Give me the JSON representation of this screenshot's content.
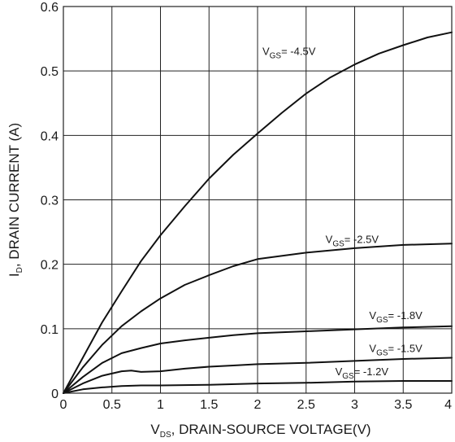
{
  "chart_data": {
    "type": "line",
    "xlabel": {
      "main": "V",
      "sub": "DS",
      "rest": ", DRAIN-SOURCE VOLTAGE(V)"
    },
    "ylabel": {
      "main": "I",
      "sub": "D",
      "rest": ", DRAIN CURRENT (A)"
    },
    "xlim": [
      0,
      4
    ],
    "ylim": [
      0,
      0.6
    ],
    "xticks": [
      {
        "value": 0,
        "label": "0"
      },
      {
        "value": 0.5,
        "label": "0.5"
      },
      {
        "value": 1,
        "label": "1"
      },
      {
        "value": 1.5,
        "label": "1.5"
      },
      {
        "value": 2,
        "label": "2"
      },
      {
        "value": 2.5,
        "label": "2.5"
      },
      {
        "value": 3,
        "label": "3"
      },
      {
        "value": 3.5,
        "label": "3.5"
      },
      {
        "value": 4,
        "label": "4"
      }
    ],
    "yticks": [
      {
        "value": 0,
        "label": "0"
      },
      {
        "value": 0.1,
        "label": "0.1"
      },
      {
        "value": 0.2,
        "label": "0.2"
      },
      {
        "value": 0.3,
        "label": "0.3"
      },
      {
        "value": 0.4,
        "label": "0.4"
      },
      {
        "value": 0.5,
        "label": "0.5"
      },
      {
        "value": 0.6,
        "label": "0.6"
      }
    ],
    "grid": true,
    "series": [
      {
        "name": "VGS= -4.5V",
        "label_main": "V",
        "label_sub": "GS",
        "label_rest": "= -4.5V",
        "label_at": [
          2.05,
          0.525
        ],
        "x": [
          0,
          0.2,
          0.4,
          0.6,
          0.8,
          1.0,
          1.25,
          1.5,
          1.75,
          2.0,
          2.25,
          2.5,
          2.75,
          3.0,
          3.25,
          3.5,
          3.75,
          4.0
        ],
        "y": [
          0,
          0.055,
          0.11,
          0.158,
          0.205,
          0.245,
          0.29,
          0.333,
          0.37,
          0.403,
          0.435,
          0.465,
          0.49,
          0.51,
          0.527,
          0.54,
          0.552,
          0.56
        ]
      },
      {
        "name": "VGS= -2.5V",
        "label_main": "V",
        "label_sub": "GS",
        "label_rest": "= -2.5V",
        "label_at": [
          2.7,
          0.233
        ],
        "x": [
          0,
          0.2,
          0.4,
          0.6,
          0.8,
          1.0,
          1.25,
          1.5,
          1.75,
          2.0,
          2.5,
          3.0,
          3.5,
          4.0
        ],
        "y": [
          0,
          0.04,
          0.075,
          0.104,
          0.127,
          0.147,
          0.168,
          0.183,
          0.197,
          0.208,
          0.218,
          0.225,
          0.23,
          0.232
        ]
      },
      {
        "name": "VGS= -1.8V",
        "label_main": "V",
        "label_sub": "GS",
        "label_rest": "= -1.8V",
        "label_at": [
          3.15,
          0.115
        ],
        "x": [
          0,
          0.2,
          0.4,
          0.6,
          0.8,
          1.0,
          1.25,
          1.5,
          1.75,
          2.0,
          2.5,
          3.0,
          3.5,
          4.0
        ],
        "y": [
          0,
          0.025,
          0.047,
          0.062,
          0.07,
          0.077,
          0.082,
          0.086,
          0.09,
          0.093,
          0.096,
          0.099,
          0.102,
          0.104
        ]
      },
      {
        "name": "VGS= -1.5V",
        "label_main": "V",
        "label_sub": "GS",
        "label_rest": "= -1.5V",
        "label_at": [
          3.15,
          0.064
        ],
        "x": [
          0,
          0.2,
          0.4,
          0.6,
          0.7,
          0.8,
          1.0,
          1.25,
          1.5,
          1.75,
          2.0,
          2.5,
          3.0,
          3.5,
          4.0
        ],
        "y": [
          0,
          0.015,
          0.027,
          0.034,
          0.035,
          0.033,
          0.034,
          0.038,
          0.041,
          0.043,
          0.045,
          0.047,
          0.05,
          0.053,
          0.055
        ]
      },
      {
        "name": "VGS= -1.2V",
        "label_main": "V",
        "label_sub": "GS",
        "label_rest": "= -1.2V",
        "label_at": [
          2.8,
          0.028
        ],
        "x": [
          0,
          0.2,
          0.4,
          0.6,
          0.8,
          1.0,
          1.5,
          2.0,
          2.5,
          3.0,
          3.5,
          4.0
        ],
        "y": [
          0,
          0.006,
          0.009,
          0.011,
          0.012,
          0.012,
          0.013,
          0.015,
          0.016,
          0.018,
          0.019,
          0.019
        ]
      }
    ]
  }
}
